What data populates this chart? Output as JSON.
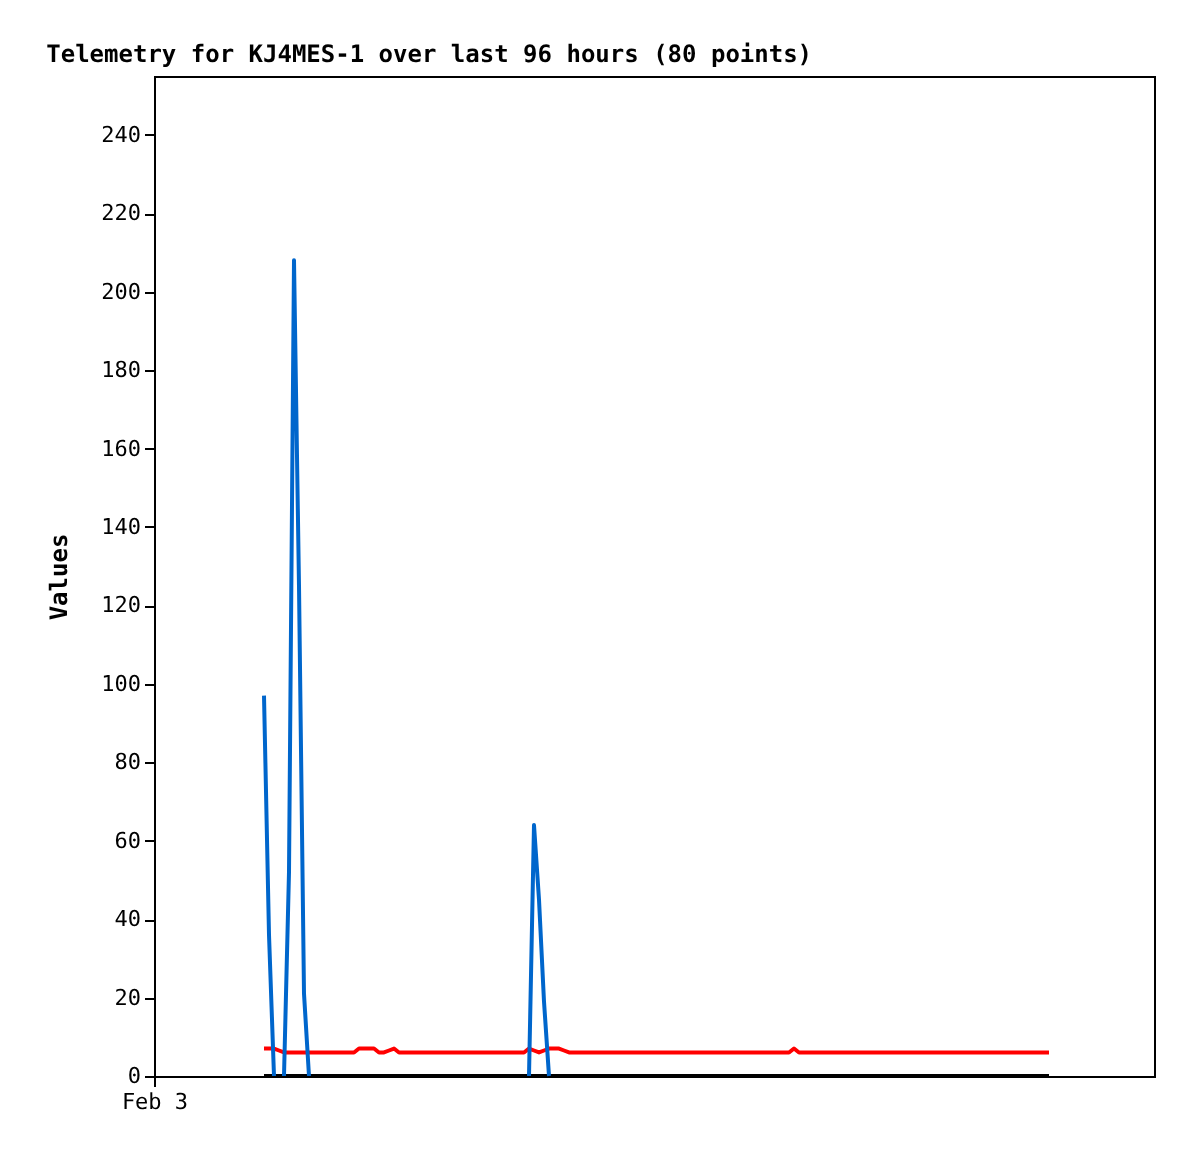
{
  "chart_data": {
    "type": "line",
    "title": "Telemetry for KJ4MES-1 over last 96 hours (80 points)",
    "ylabel": "Values",
    "categories": [
      "Feb 3",
      null,
      null,
      null,
      null,
      null,
      null,
      null,
      null,
      null,
      null,
      null,
      null,
      null,
      null,
      null,
      null,
      null,
      null,
      null,
      null,
      null,
      null,
      null,
      null,
      null,
      null,
      null,
      null,
      null,
      null,
      null,
      null,
      null,
      null,
      null,
      null,
      null,
      null,
      null,
      null,
      null,
      null,
      null,
      null,
      null,
      null,
      null,
      null,
      null,
      null,
      null,
      null,
      null,
      null,
      null,
      null,
      null,
      null,
      null,
      null,
      null,
      null,
      null,
      null,
      null,
      null,
      null,
      null,
      null,
      null,
      null,
      null,
      null,
      null,
      null,
      null,
      null,
      null,
      null,
      null,
      null,
      null,
      null,
      null,
      null,
      null,
      null,
      null,
      null,
      null,
      null,
      null,
      null,
      null,
      null,
      null,
      null,
      null,
      null,
      null,
      null,
      null,
      null,
      null,
      null,
      null,
      null,
      null,
      null,
      null,
      null,
      null,
      null,
      null,
      null,
      null,
      null,
      null,
      null,
      null,
      null,
      null,
      null,
      null,
      null,
      null,
      null,
      null,
      null,
      null,
      null,
      null,
      null,
      null,
      null,
      null,
      null,
      null,
      null,
      null,
      null,
      null,
      null,
      null,
      null,
      null,
      null,
      null,
      null,
      null,
      null,
      null,
      null,
      null,
      null,
      null,
      null,
      null,
      null,
      null,
      null,
      null,
      null,
      null,
      null,
      null,
      null,
      null,
      null,
      null,
      null,
      null,
      null,
      null,
      null,
      null,
      null,
      null,
      null,
      null,
      null,
      null,
      null,
      null,
      null,
      null,
      null,
      null,
      null,
      null,
      null,
      null,
      null,
      null,
      null,
      null,
      null,
      null,
      null,
      null
    ],
    "ylim": [
      0,
      255
    ],
    "yticks": [
      0,
      20,
      40,
      60,
      80,
      100,
      120,
      140,
      160,
      180,
      200,
      220,
      240
    ],
    "grid": false,
    "marker": "none",
    "line_style": "solid",
    "series": [
      {
        "color": "#000000",
        "values": [
          null,
          null,
          null,
          null,
          null,
          null,
          null,
          null,
          null,
          null,
          null,
          null,
          null,
          null,
          null,
          null,
          null,
          null,
          null,
          null,
          null,
          null,
          0,
          0,
          0,
          0,
          0,
          0,
          0,
          0,
          0,
          0,
          0,
          0,
          0,
          0,
          0,
          0,
          0,
          0,
          0,
          0,
          0,
          0,
          0,
          0,
          0,
          0,
          0,
          0,
          0,
          0,
          0,
          0,
          0,
          0,
          0,
          0,
          0,
          0,
          0,
          0,
          0,
          0,
          0,
          0,
          0,
          0,
          0,
          0,
          0,
          0,
          0,
          0,
          0,
          0,
          0,
          0,
          0,
          0,
          0,
          0,
          0,
          0,
          0,
          0,
          0,
          0,
          0,
          0,
          0,
          0,
          0,
          0,
          0,
          0,
          0,
          0,
          0,
          0,
          0,
          0,
          0,
          0,
          0,
          0,
          0,
          0,
          0,
          0,
          0,
          0,
          0,
          0,
          0,
          0,
          0,
          0,
          0,
          0,
          0,
          0,
          0,
          0,
          0,
          0,
          0,
          0,
          0,
          0,
          0,
          0,
          0,
          0,
          0,
          0,
          0,
          0,
          0,
          0,
          0,
          0,
          0,
          0,
          0,
          0,
          0,
          0,
          0,
          0,
          0,
          0,
          0,
          0,
          0,
          0,
          0,
          0,
          0,
          0,
          0,
          0,
          0,
          0,
          0,
          0,
          0,
          0,
          0,
          0,
          0,
          0,
          0,
          0,
          0,
          0,
          0,
          0,
          0,
          0,
          null,
          null,
          null,
          null,
          null,
          null,
          null,
          null,
          null,
          null,
          null,
          null,
          null,
          null,
          null,
          null,
          null,
          null,
          null,
          null,
          null
        ]
      },
      {
        "color": "#ff0000",
        "values": [
          null,
          null,
          null,
          null,
          null,
          null,
          null,
          null,
          null,
          null,
          null,
          null,
          null,
          null,
          null,
          null,
          null,
          null,
          null,
          null,
          null,
          null,
          7,
          7,
          7,
          6.5,
          6,
          6,
          6,
          6,
          6,
          6,
          6,
          6,
          6,
          6,
          6,
          6,
          6,
          6,
          6,
          7,
          7,
          7,
          7,
          6,
          6,
          6.5,
          7,
          6,
          6,
          6,
          6,
          6,
          6,
          6,
          6,
          6,
          6,
          6,
          6,
          6,
          6,
          6,
          6,
          6,
          6,
          6,
          6,
          6,
          6,
          6,
          6,
          6,
          6,
          7,
          6.5,
          6,
          6.5,
          7,
          7,
          7,
          6.5,
          6,
          6,
          6,
          6,
          6,
          6,
          6,
          6,
          6,
          6,
          6,
          6,
          6,
          6,
          6,
          6,
          6,
          6,
          6,
          6,
          6,
          6,
          6,
          6,
          6,
          6,
          6,
          6,
          6,
          6,
          6,
          6,
          6,
          6,
          6,
          6,
          6,
          6,
          6,
          6,
          6,
          6,
          6,
          6,
          6,
          7,
          6,
          6,
          6,
          6,
          6,
          6,
          6,
          6,
          6,
          6,
          6,
          6,
          6,
          6,
          6,
          6,
          6,
          6,
          6,
          6,
          6,
          6,
          6,
          6,
          6,
          6,
          6,
          6,
          6,
          6,
          6,
          6,
          6,
          6,
          6,
          6,
          6,
          6,
          6,
          6,
          6,
          6,
          6,
          6,
          6,
          6,
          6,
          6,
          6,
          6,
          6,
          null,
          null,
          null,
          null,
          null,
          null,
          null,
          null,
          null,
          null,
          null,
          null,
          null,
          null,
          null,
          null,
          null,
          null,
          null,
          null,
          null
        ]
      },
      {
        "color": "#0066cc",
        "values": [
          null,
          null,
          null,
          null,
          null,
          null,
          null,
          null,
          null,
          null,
          null,
          null,
          null,
          null,
          null,
          null,
          null,
          null,
          null,
          null,
          null,
          null,
          97,
          36,
          0,
          null,
          0,
          52,
          208,
          125,
          21,
          0,
          null,
          null,
          null,
          null,
          null,
          null,
          null,
          null,
          null,
          null,
          null,
          null,
          null,
          null,
          null,
          null,
          null,
          null,
          null,
          null,
          null,
          null,
          null,
          null,
          null,
          null,
          null,
          null,
          null,
          null,
          null,
          null,
          null,
          null,
          null,
          null,
          null,
          null,
          null,
          null,
          null,
          null,
          null,
          0,
          64,
          45,
          19,
          0,
          null,
          null,
          null,
          null,
          null,
          null,
          null,
          null,
          null,
          null,
          null,
          null,
          null,
          null,
          null,
          null,
          null,
          null,
          null,
          null,
          null,
          null,
          null,
          null,
          null,
          null,
          null,
          null,
          null,
          null,
          null,
          null,
          null,
          null,
          null,
          null,
          null,
          null,
          null,
          null,
          null,
          null,
          null,
          null,
          null,
          null,
          null,
          null,
          null,
          null,
          null,
          null,
          null,
          null,
          null,
          null,
          null,
          null,
          null,
          null,
          null,
          null,
          null,
          null,
          null,
          null,
          null,
          null,
          null,
          null,
          null,
          null,
          null,
          null,
          null,
          null,
          null,
          null,
          null,
          null,
          null,
          null,
          null,
          null,
          null,
          null,
          null,
          null,
          null,
          null,
          null,
          null,
          null,
          null,
          null,
          null,
          null,
          null,
          null,
          null,
          null,
          null,
          null,
          null,
          null,
          null,
          null,
          null,
          null,
          null,
          null,
          null,
          null,
          null,
          null,
          null,
          null,
          null,
          null,
          null,
          null
        ]
      }
    ]
  }
}
